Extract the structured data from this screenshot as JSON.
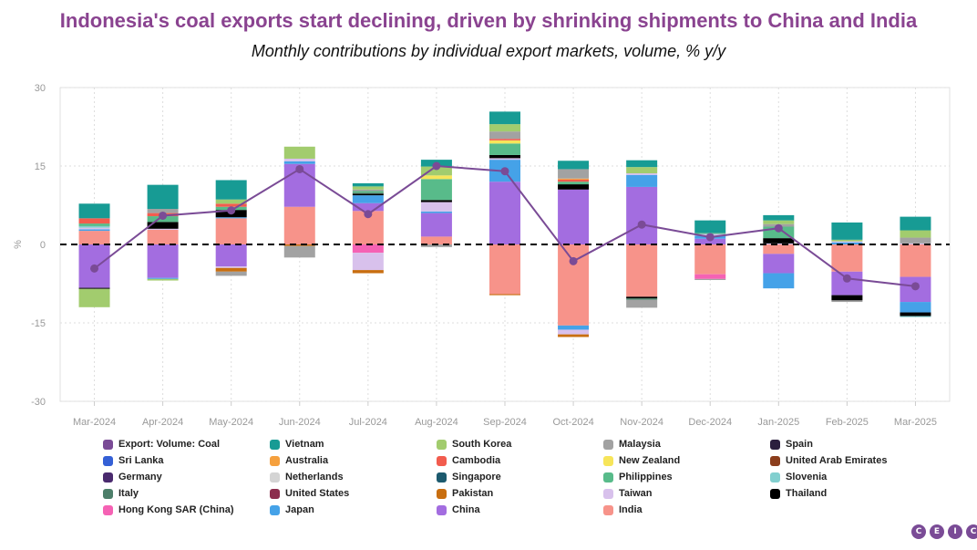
{
  "header": {
    "title": "Indonesia's coal exports start declining, driven by shrinking shipments to China and India",
    "subtitle": "Monthly contributions by individual export markets, volume, % y/y"
  },
  "colors": {
    "title": "#8a4390",
    "line": "#7a4b96",
    "grid": "#dddddd",
    "axis_text": "#999999"
  },
  "logo": {
    "letters": [
      "C",
      "E",
      "I",
      "C"
    ]
  },
  "chart_data": {
    "type": "bar",
    "stacked": true,
    "ylabel": "%",
    "ylim": [
      -30,
      30
    ],
    "yticks": [
      30,
      15,
      0,
      -15,
      -30
    ],
    "grid": true,
    "legend_position": "bottom",
    "categories": [
      "Mar-2024",
      "Apr-2024",
      "May-2024",
      "Jun-2024",
      "Jul-2024",
      "Aug-2024",
      "Sep-2024",
      "Oct-2024",
      "Nov-2024",
      "Dec-2024",
      "Jan-2025",
      "Feb-2025",
      "Mar-2025"
    ],
    "line_series": {
      "name": "Export: Volume: Coal",
      "color": "#7a4b96",
      "values": [
        -4.6,
        5.5,
        6.5,
        14.4,
        5.8,
        15.0,
        14.0,
        -3.2,
        3.8,
        1.4,
        3.1,
        -6.5,
        -8.0
      ]
    },
    "series": [
      {
        "name": "India",
        "color": "#f7938a",
        "values": [
          2.6,
          2.8,
          5.0,
          7.2,
          6.4,
          1.5,
          -9.5,
          -15.5,
          -10.0,
          -5.7,
          -1.8,
          -5.2,
          -6.2
        ]
      },
      {
        "name": "China",
        "color": "#a36de0",
        "values": [
          -8.3,
          -6.4,
          -4.2,
          8.2,
          1.5,
          4.5,
          12.0,
          10.5,
          11.0,
          1.1,
          -3.7,
          -4.5,
          -4.8
        ]
      },
      {
        "name": "Japan",
        "color": "#45a2e8",
        "values": [
          0.3,
          -0.2,
          0.2,
          0.5,
          1.5,
          0.3,
          4.2,
          -0.8,
          2.3,
          0.6,
          -2.9,
          0.4,
          -2.0
        ]
      },
      {
        "name": "Hong Kong SAR (China)",
        "color": "#f562b4",
        "values": [
          0,
          0,
          0,
          0,
          -1.6,
          0,
          0,
          0,
          0,
          -0.9,
          0,
          0,
          0
        ]
      },
      {
        "name": "Taiwan",
        "color": "#d8c1ec",
        "values": [
          0.3,
          0.2,
          -0.3,
          0.5,
          -3.3,
          1.8,
          0.3,
          -0.9,
          0.3,
          0.3,
          0.2,
          0.2,
          0.2
        ]
      },
      {
        "name": "Thailand",
        "color": "#000000",
        "values": [
          -0.2,
          1.3,
          1.4,
          0,
          0.3,
          0.4,
          0.6,
          1.0,
          -0.3,
          0,
          1.0,
          -1.0,
          -0.7
        ]
      },
      {
        "name": "Pakistan",
        "color": "#c86e10",
        "values": [
          0,
          0,
          -0.7,
          -0.3,
          -0.6,
          0,
          -0.2,
          -0.5,
          0,
          0,
          0,
          0,
          0
        ]
      },
      {
        "name": "United States",
        "color": "#8c2d4d",
        "values": [
          0,
          0,
          0,
          0,
          0,
          0,
          0,
          0,
          0,
          0,
          0,
          0,
          0
        ]
      },
      {
        "name": "Italy",
        "color": "#4d7f6a",
        "values": [
          0,
          0,
          0,
          0,
          0.2,
          0,
          0,
          0,
          -0.3,
          0,
          0,
          0,
          0
        ]
      },
      {
        "name": "Slovenia",
        "color": "#82cfcf",
        "values": [
          0.3,
          0,
          0,
          0,
          0,
          0,
          0,
          0,
          0,
          0,
          0,
          0,
          -0.2
        ]
      },
      {
        "name": "Philippines",
        "color": "#58bb8a",
        "values": [
          0.5,
          1.1,
          0.6,
          0,
          0.3,
          4.0,
          2.2,
          0.5,
          0,
          0.2,
          2.2,
          0,
          0
        ]
      },
      {
        "name": "Singapore",
        "color": "#1c5a6e",
        "values": [
          0,
          0,
          0,
          0,
          0,
          0,
          0,
          0,
          0,
          0,
          0,
          0,
          0
        ]
      },
      {
        "name": "Netherlands",
        "color": "#d4d4d4",
        "values": [
          0,
          0,
          0,
          0,
          0,
          0,
          0,
          0,
          0,
          0,
          0,
          0,
          0
        ]
      },
      {
        "name": "Germany",
        "color": "#4a2a6e",
        "values": [
          0,
          0,
          0,
          0,
          0,
          0,
          0,
          0,
          0,
          0,
          0,
          0,
          0
        ]
      },
      {
        "name": "United Arab Emirates",
        "color": "#8b3e1c",
        "values": [
          0,
          0,
          0,
          0,
          0,
          0,
          0,
          0,
          0,
          0,
          0,
          0,
          0
        ]
      },
      {
        "name": "New Zealand",
        "color": "#f7e55a",
        "values": [
          0,
          0,
          0,
          0,
          0,
          0.7,
          0.6,
          0,
          0,
          0,
          0,
          0,
          0
        ]
      },
      {
        "name": "Cambodia",
        "color": "#f25c4e",
        "values": [
          1.0,
          0.6,
          0.6,
          0,
          0,
          0,
          0.3,
          0.4,
          0,
          0,
          0,
          0,
          0
        ]
      },
      {
        "name": "Australia",
        "color": "#f5a03e",
        "values": [
          0,
          0,
          0,
          0,
          0,
          0,
          0,
          0.2,
          0,
          0,
          0,
          0,
          0
        ]
      },
      {
        "name": "Sri Lanka",
        "color": "#3460d6",
        "values": [
          0,
          0,
          0,
          0,
          0,
          0,
          0,
          0,
          0,
          0,
          0,
          0,
          0
        ]
      },
      {
        "name": "Spain",
        "color": "#2b1f3e",
        "values": [
          0,
          0,
          0,
          0,
          0,
          0,
          0,
          0,
          0,
          0,
          0,
          0,
          0
        ]
      },
      {
        "name": "Malaysia",
        "color": "#a2a2a2",
        "values": [
          0,
          0.8,
          -0.8,
          -2.2,
          0.3,
          -0.5,
          1.4,
          1.8,
          -1.5,
          -0.2,
          0.5,
          -0.3,
          1.1
        ]
      },
      {
        "name": "South Korea",
        "color": "#a2cc6e",
        "values": [
          -3.5,
          -0.3,
          0.8,
          2.3,
          0.6,
          1.7,
          1.4,
          0,
          1.2,
          0,
          0.7,
          0.3,
          1.4
        ]
      },
      {
        "name": "Vietnam",
        "color": "#179b94",
        "values": [
          2.8,
          4.6,
          3.7,
          0,
          0.6,
          1.3,
          2.4,
          1.6,
          1.3,
          2.4,
          1.0,
          3.3,
          2.6
        ]
      }
    ],
    "legend_entries": [
      {
        "name": "Export: Volume: Coal",
        "color": "#7a4b96"
      },
      {
        "name": "Vietnam",
        "color": "#179b94"
      },
      {
        "name": "South Korea",
        "color": "#a2cc6e"
      },
      {
        "name": "Malaysia",
        "color": "#a2a2a2"
      },
      {
        "name": "Spain",
        "color": "#2b1f3e"
      },
      {
        "name": "Sri Lanka",
        "color": "#3460d6"
      },
      {
        "name": "Australia",
        "color": "#f5a03e"
      },
      {
        "name": "Cambodia",
        "color": "#f25c4e"
      },
      {
        "name": "New Zealand",
        "color": "#f7e55a"
      },
      {
        "name": "United Arab Emirates",
        "color": "#8b3e1c"
      },
      {
        "name": "Germany",
        "color": "#4a2a6e"
      },
      {
        "name": "Netherlands",
        "color": "#d4d4d4"
      },
      {
        "name": "Singapore",
        "color": "#1c5a6e"
      },
      {
        "name": "Philippines",
        "color": "#58bb8a"
      },
      {
        "name": "Slovenia",
        "color": "#82cfcf"
      },
      {
        "name": "Italy",
        "color": "#4d7f6a"
      },
      {
        "name": "United States",
        "color": "#8c2d4d"
      },
      {
        "name": "Pakistan",
        "color": "#c86e10"
      },
      {
        "name": "Taiwan",
        "color": "#d8c1ec"
      },
      {
        "name": "Thailand",
        "color": "#000000"
      },
      {
        "name": "Hong Kong SAR (China)",
        "color": "#f562b4"
      },
      {
        "name": "Japan",
        "color": "#45a2e8"
      },
      {
        "name": "China",
        "color": "#a36de0"
      },
      {
        "name": "India",
        "color": "#f7938a"
      }
    ]
  }
}
